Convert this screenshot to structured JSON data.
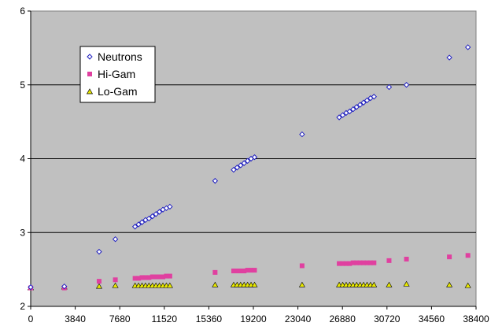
{
  "chart_data": {
    "type": "scatter",
    "title": "",
    "xlabel": "",
    "ylabel": "",
    "xlim": [
      0,
      38400
    ],
    "ylim": [
      2,
      6
    ],
    "x_ticks": [
      0,
      3840,
      7680,
      11520,
      15360,
      19200,
      23040,
      26880,
      30720,
      34560,
      38400
    ],
    "y_ticks": [
      2,
      3,
      4,
      5,
      6
    ],
    "grid": {
      "horizontal": true,
      "vertical": false
    },
    "plot_background": "#c0c0c0",
    "legend": {
      "placement": "top-left"
    },
    "series": [
      {
        "name": "Neutrons",
        "marker": "diamond-open",
        "color": "#1f1fbf",
        "points": [
          [
            0,
            2.26
          ],
          [
            2900,
            2.27
          ],
          [
            5900,
            2.74
          ],
          [
            7300,
            2.91
          ],
          [
            9000,
            3.08
          ],
          [
            9300,
            3.11
          ],
          [
            9600,
            3.14
          ],
          [
            9900,
            3.17
          ],
          [
            10200,
            3.19
          ],
          [
            10500,
            3.22
          ],
          [
            10800,
            3.25
          ],
          [
            11100,
            3.28
          ],
          [
            11400,
            3.31
          ],
          [
            11700,
            3.33
          ],
          [
            12000,
            3.35
          ],
          [
            15900,
            3.7
          ],
          [
            17500,
            3.85
          ],
          [
            17800,
            3.88
          ],
          [
            18100,
            3.91
          ],
          [
            18400,
            3.94
          ],
          [
            18700,
            3.97
          ],
          [
            19000,
            4.0
          ],
          [
            19300,
            4.02
          ],
          [
            23400,
            4.33
          ],
          [
            26600,
            4.56
          ],
          [
            26900,
            4.59
          ],
          [
            27200,
            4.62
          ],
          [
            27500,
            4.64
          ],
          [
            27800,
            4.67
          ],
          [
            28100,
            4.7
          ],
          [
            28400,
            4.73
          ],
          [
            28700,
            4.76
          ],
          [
            29000,
            4.79
          ],
          [
            29300,
            4.82
          ],
          [
            29600,
            4.84
          ],
          [
            30900,
            4.97
          ],
          [
            32400,
            5.0
          ],
          [
            36100,
            5.37
          ],
          [
            37700,
            5.51
          ]
        ]
      },
      {
        "name": "Hi-Gam",
        "marker": "square",
        "color": "#e040a0",
        "points": [
          [
            0,
            2.25
          ],
          [
            2900,
            2.25
          ],
          [
            5900,
            2.34
          ],
          [
            7300,
            2.36
          ],
          [
            9000,
            2.38
          ],
          [
            9300,
            2.38
          ],
          [
            9600,
            2.39
          ],
          [
            9900,
            2.39
          ],
          [
            10200,
            2.39
          ],
          [
            10500,
            2.4
          ],
          [
            10800,
            2.4
          ],
          [
            11100,
            2.4
          ],
          [
            11400,
            2.4
          ],
          [
            11700,
            2.41
          ],
          [
            12000,
            2.41
          ],
          [
            15900,
            2.46
          ],
          [
            17500,
            2.48
          ],
          [
            17800,
            2.48
          ],
          [
            18100,
            2.48
          ],
          [
            18400,
            2.48
          ],
          [
            18700,
            2.49
          ],
          [
            19000,
            2.49
          ],
          [
            19300,
            2.49
          ],
          [
            23400,
            2.55
          ],
          [
            26600,
            2.58
          ],
          [
            26900,
            2.58
          ],
          [
            27200,
            2.58
          ],
          [
            27500,
            2.58
          ],
          [
            27800,
            2.59
          ],
          [
            28100,
            2.59
          ],
          [
            28400,
            2.59
          ],
          [
            28700,
            2.59
          ],
          [
            29000,
            2.59
          ],
          [
            29300,
            2.59
          ],
          [
            29600,
            2.59
          ],
          [
            30900,
            2.62
          ],
          [
            32400,
            2.64
          ],
          [
            36100,
            2.67
          ],
          [
            37700,
            2.69
          ]
        ]
      },
      {
        "name": "Lo-Gam",
        "marker": "triangle",
        "color": "#e8e800",
        "points": [
          [
            0,
            2.25
          ],
          [
            2900,
            2.26
          ],
          [
            5900,
            2.27
          ],
          [
            7300,
            2.28
          ],
          [
            9000,
            2.28
          ],
          [
            9300,
            2.28
          ],
          [
            9600,
            2.28
          ],
          [
            9900,
            2.28
          ],
          [
            10200,
            2.28
          ],
          [
            10500,
            2.28
          ],
          [
            10800,
            2.28
          ],
          [
            11100,
            2.28
          ],
          [
            11400,
            2.28
          ],
          [
            11700,
            2.28
          ],
          [
            12000,
            2.28
          ],
          [
            15900,
            2.29
          ],
          [
            17500,
            2.29
          ],
          [
            17800,
            2.29
          ],
          [
            18100,
            2.29
          ],
          [
            18400,
            2.29
          ],
          [
            18700,
            2.29
          ],
          [
            19000,
            2.29
          ],
          [
            19300,
            2.29
          ],
          [
            23400,
            2.29
          ],
          [
            26600,
            2.29
          ],
          [
            26900,
            2.29
          ],
          [
            27200,
            2.29
          ],
          [
            27500,
            2.29
          ],
          [
            27800,
            2.29
          ],
          [
            28100,
            2.29
          ],
          [
            28400,
            2.29
          ],
          [
            28700,
            2.29
          ],
          [
            29000,
            2.29
          ],
          [
            29300,
            2.29
          ],
          [
            29600,
            2.29
          ],
          [
            30900,
            2.29
          ],
          [
            32400,
            2.3
          ],
          [
            36100,
            2.29
          ],
          [
            37700,
            2.28
          ]
        ]
      }
    ]
  }
}
